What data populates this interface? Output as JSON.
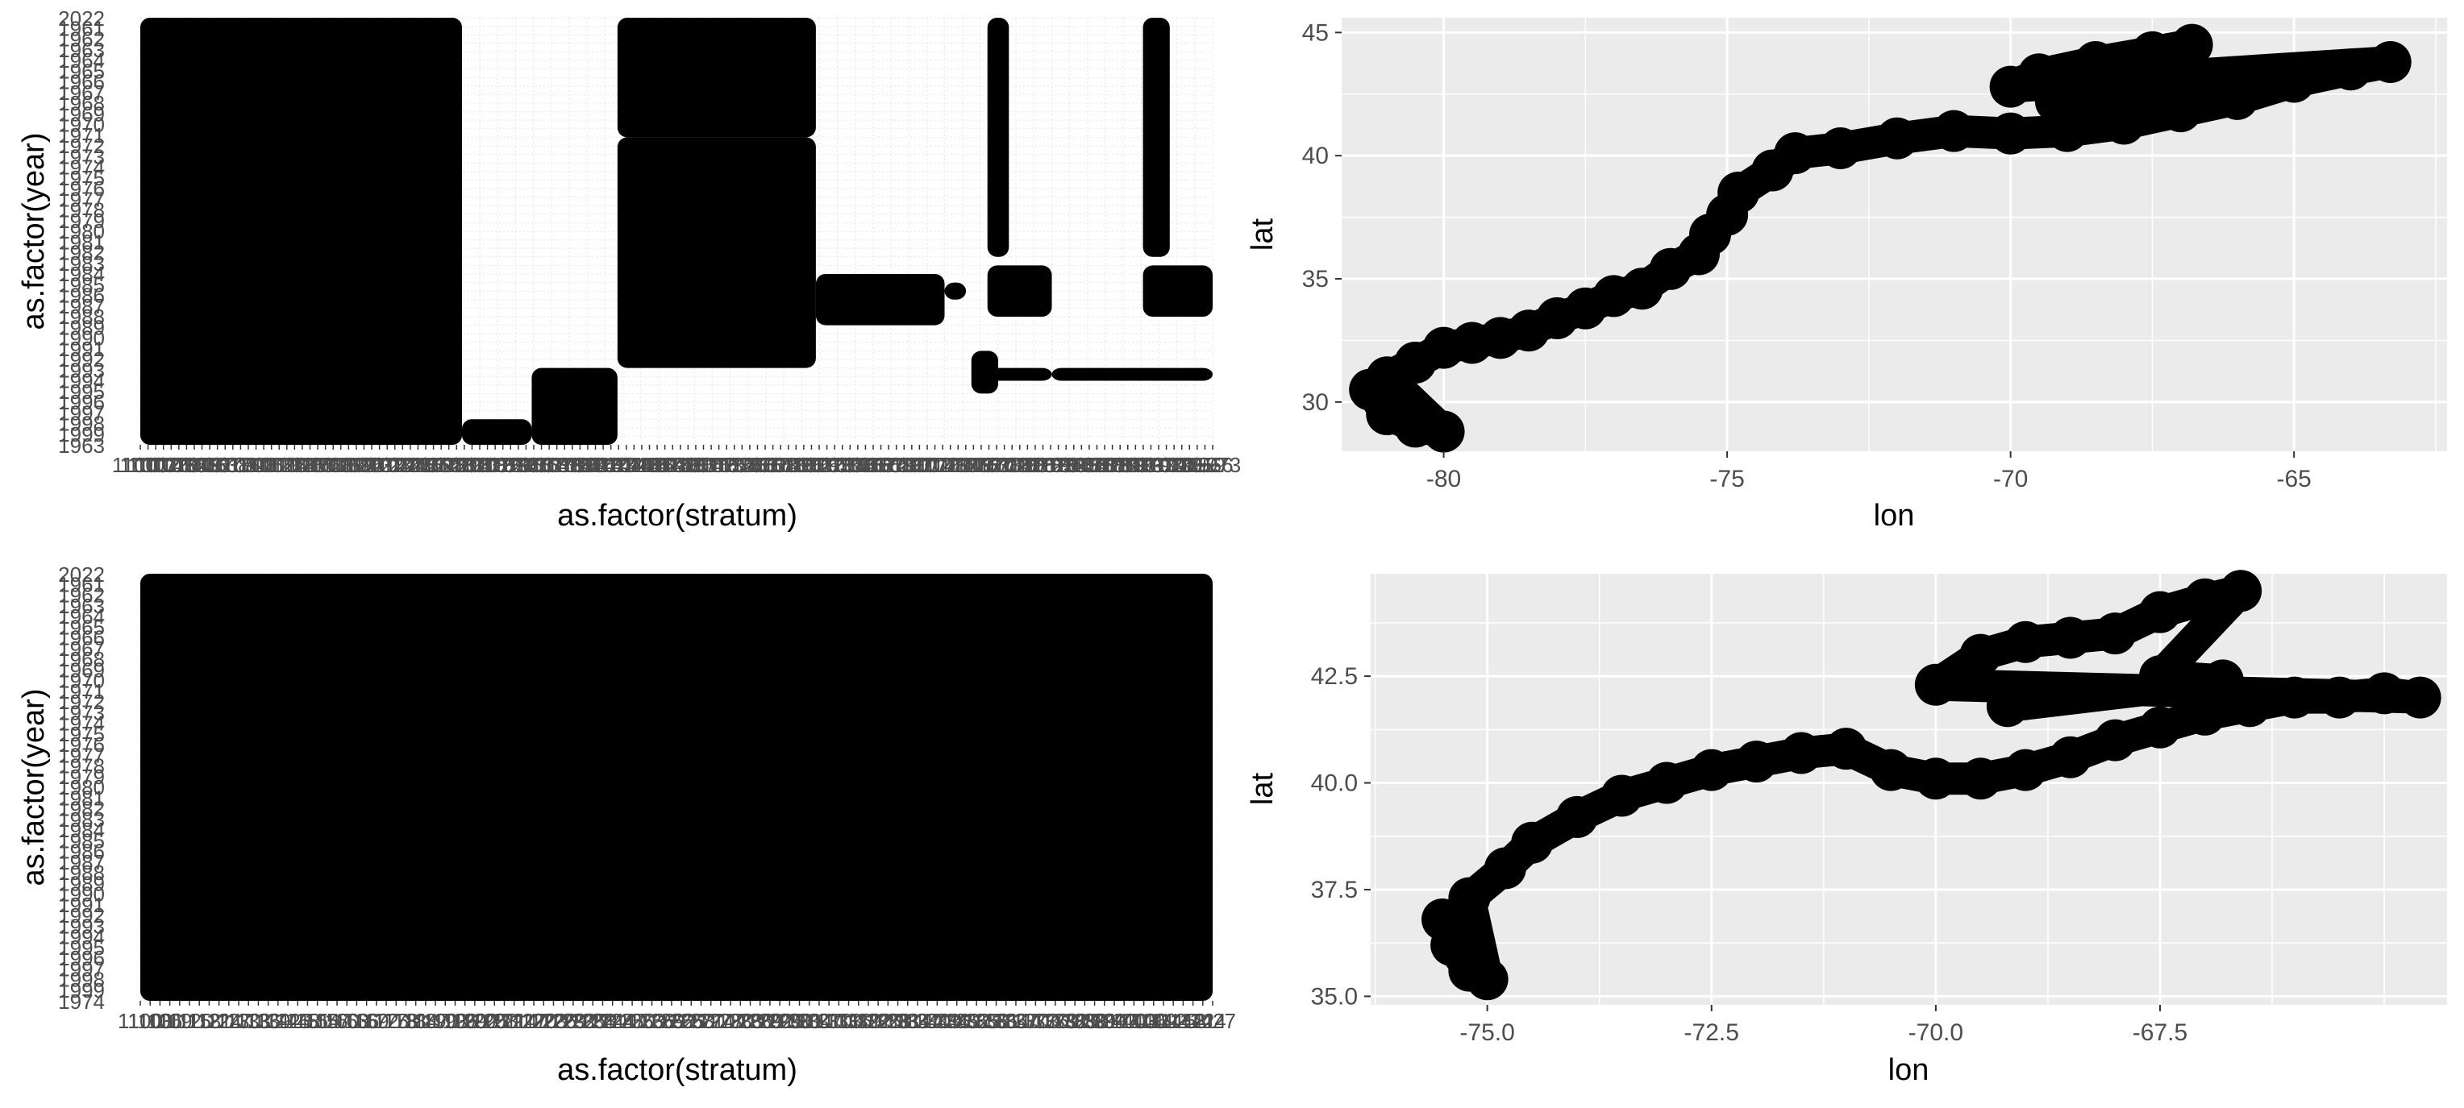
{
  "chart_data": [
    {
      "type": "scatter",
      "panel": "top-left",
      "xlabel": "as.factor(stratum)",
      "ylabel": "as.factor(year)",
      "y_tick_labels": [
        "1963",
        "2022"
      ],
      "x_tick_labels_note": "dense overlapping stratum labels (illegible)",
      "background": "white",
      "grid": true,
      "bands": [
        {
          "x_from": 0.0,
          "x_to": 0.6,
          "y_from": 0.0,
          "y_to": 1.0
        },
        {
          "x_from": 0.6,
          "x_to": 0.73,
          "y_from": 0.0,
          "y_to": 0.06
        },
        {
          "x_from": 0.73,
          "x_to": 0.89,
          "y_from": 0.0,
          "y_to": 0.18
        },
        {
          "x_from": 0.89,
          "x_to": 1.26,
          "y_from": 0.18,
          "y_to": 0.72
        },
        {
          "x_from": 0.89,
          "x_to": 1.26,
          "y_from": 0.72,
          "y_to": 1.0
        },
        {
          "x_from": 1.26,
          "x_to": 1.5,
          "y_from": 0.28,
          "y_to": 0.4
        },
        {
          "x_from": 1.5,
          "x_to": 1.54,
          "y_from": 0.34,
          "y_to": 0.38
        },
        {
          "x_from": 1.55,
          "x_to": 1.6,
          "y_from": 0.12,
          "y_to": 0.22
        },
        {
          "x_from": 1.56,
          "x_to": 1.7,
          "y_from": 0.15,
          "y_to": 0.18
        },
        {
          "x_from": 1.7,
          "x_to": 2.0,
          "y_from": 0.15,
          "y_to": 0.18
        },
        {
          "x_from": 1.58,
          "x_to": 1.62,
          "y_from": 0.44,
          "y_to": 1.0
        },
        {
          "x_from": 1.58,
          "x_to": 1.7,
          "y_from": 0.3,
          "y_to": 0.42
        },
        {
          "x_from": 1.87,
          "x_to": 1.92,
          "y_from": 0.44,
          "y_to": 1.0
        },
        {
          "x_from": 1.87,
          "x_to": 2.0,
          "y_from": 0.3,
          "y_to": 0.42
        }
      ]
    },
    {
      "type": "scatter",
      "panel": "top-right",
      "xlabel": "lon",
      "ylabel": "lat",
      "xlim": [
        -81.8,
        -62.3
      ],
      "ylim": [
        28.0,
        45.6
      ],
      "x_ticks": [
        -80,
        -75,
        -70,
        -65
      ],
      "y_ticks": [
        30,
        35,
        40,
        45
      ],
      "background": "#ebebeb",
      "grid": true,
      "points": [
        [
          -81.3,
          30.5
        ],
        [
          -81.0,
          29.5
        ],
        [
          -80.5,
          29.0
        ],
        [
          -80.0,
          28.8
        ],
        [
          -81.0,
          31.0
        ],
        [
          -80.5,
          31.6
        ],
        [
          -80.0,
          32.2
        ],
        [
          -79.5,
          32.4
        ],
        [
          -79.0,
          32.6
        ],
        [
          -78.5,
          32.9
        ],
        [
          -78.0,
          33.4
        ],
        [
          -77.5,
          33.8
        ],
        [
          -77.0,
          34.3
        ],
        [
          -76.5,
          34.6
        ],
        [
          -76.0,
          35.4
        ],
        [
          -75.5,
          36.0
        ],
        [
          -75.3,
          36.8
        ],
        [
          -75.0,
          37.6
        ],
        [
          -74.8,
          38.5
        ],
        [
          -74.2,
          39.4
        ],
        [
          -73.8,
          40.1
        ],
        [
          -73.0,
          40.3
        ],
        [
          -72.0,
          40.7
        ],
        [
          -71.0,
          41.0
        ],
        [
          -70.0,
          40.9
        ],
        [
          -69.0,
          41.0
        ],
        [
          -68.0,
          41.3
        ],
        [
          -67.0,
          41.8
        ],
        [
          -66.0,
          42.3
        ],
        [
          -65.0,
          43.0
        ],
        [
          -64.0,
          43.5
        ],
        [
          -63.3,
          43.8
        ],
        [
          -70.0,
          42.8
        ],
        [
          -69.5,
          43.3
        ],
        [
          -68.5,
          43.8
        ],
        [
          -67.5,
          44.2
        ],
        [
          -66.8,
          44.5
        ],
        [
          -69.2,
          42.2
        ],
        [
          -67.5,
          42.7
        ],
        [
          -66.5,
          43.0
        ]
      ]
    },
    {
      "type": "scatter",
      "panel": "bottom-left",
      "xlabel": "as.factor(stratum)",
      "ylabel": "as.factor(year)",
      "y_tick_labels": [
        "1974",
        "2022"
      ],
      "x_tick_labels_note": "dense overlapping stratum labels (illegible)",
      "background": "white",
      "grid": true,
      "bands": [
        {
          "x_from": 0.0,
          "x_to": 1.0,
          "y_from": 0.0,
          "y_to": 1.0
        }
      ]
    },
    {
      "type": "scatter",
      "panel": "bottom-right",
      "xlabel": "lon",
      "ylabel": "lat",
      "xlim": [
        -76.3,
        -64.3
      ],
      "ylim": [
        34.8,
        44.9
      ],
      "x_ticks": [
        -75.0,
        -72.5,
        -70.0,
        -67.5
      ],
      "x_tick_labels": [
        "-75.0",
        "-72.5",
        "-70.0",
        "-67.5"
      ],
      "y_ticks": [
        35.0,
        37.5,
        40.0,
        42.5
      ],
      "y_tick_labels": [
        "35.0",
        "37.5",
        "40.0",
        "42.5"
      ],
      "background": "#ebebeb",
      "grid": true,
      "points": [
        [
          -75.5,
          36.8
        ],
        [
          -75.4,
          36.2
        ],
        [
          -75.2,
          35.6
        ],
        [
          -75.0,
          35.4
        ],
        [
          -75.2,
          37.3
        ],
        [
          -74.8,
          38.0
        ],
        [
          -74.5,
          38.6
        ],
        [
          -74.0,
          39.2
        ],
        [
          -73.5,
          39.7
        ],
        [
          -73.0,
          40.0
        ],
        [
          -72.5,
          40.3
        ],
        [
          -72.0,
          40.5
        ],
        [
          -71.5,
          40.7
        ],
        [
          -71.0,
          40.8
        ],
        [
          -70.5,
          40.3
        ],
        [
          -70.0,
          40.1
        ],
        [
          -69.5,
          40.1
        ],
        [
          -69.0,
          40.3
        ],
        [
          -68.5,
          40.6
        ],
        [
          -68.0,
          41.0
        ],
        [
          -67.5,
          41.3
        ],
        [
          -67.0,
          41.6
        ],
        [
          -66.5,
          41.8
        ],
        [
          -66.0,
          42.0
        ],
        [
          -65.5,
          42.0
        ],
        [
          -65.0,
          42.1
        ],
        [
          -64.6,
          42.0
        ],
        [
          -70.0,
          42.3
        ],
        [
          -69.5,
          43.0
        ],
        [
          -69.0,
          43.3
        ],
        [
          -68.5,
          43.4
        ],
        [
          -68.0,
          43.5
        ],
        [
          -67.5,
          44.0
        ],
        [
          -67.0,
          44.3
        ],
        [
          -66.6,
          44.5
        ],
        [
          -67.5,
          42.5
        ],
        [
          -66.8,
          42.4
        ],
        [
          -69.2,
          41.8
        ]
      ]
    }
  ]
}
